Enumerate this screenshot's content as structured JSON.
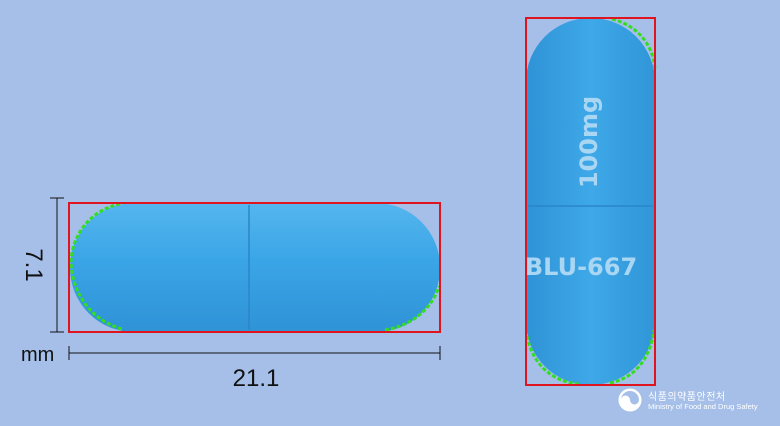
{
  "dimensions": {
    "height_value": "7.1",
    "width_value": "21.1",
    "unit": "mm"
  },
  "imprint": {
    "top_half": "100mg",
    "bottom_half": "BLU-667"
  },
  "ministry": {
    "name_ko": "식품의약품안전처",
    "name_en": "Ministry of Food and Drug Safety"
  },
  "colors": {
    "background": "#a5bfe9",
    "capsule": "#3aa5e6",
    "bounding_box": "#e0141e",
    "outline_marks": "#33dd22",
    "imprint": "#a9d6f2"
  }
}
